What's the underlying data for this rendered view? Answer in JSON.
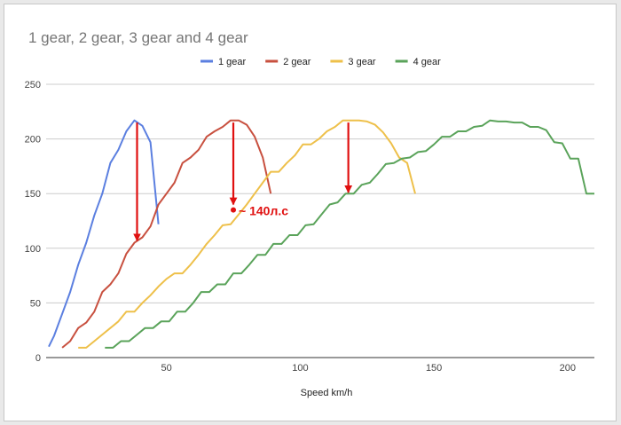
{
  "chart_data": {
    "type": "line",
    "title": "1 gear, 2 gear, 3 gear and 4 gear",
    "xlabel": "Speed km/h",
    "ylabel": "",
    "xlim": [
      5,
      210
    ],
    "ylim": [
      0,
      250
    ],
    "x_ticks": [
      50,
      100,
      150,
      200
    ],
    "y_ticks": [
      0,
      50,
      100,
      150,
      200,
      250
    ],
    "grid": "horizontal",
    "legend_position": "top",
    "series": [
      {
        "name": "1 gear",
        "color": "#5b7fe0",
        "points": [
          [
            6,
            10
          ],
          [
            8,
            20
          ],
          [
            11,
            40
          ],
          [
            14,
            60
          ],
          [
            17,
            85
          ],
          [
            20,
            105
          ],
          [
            23,
            130
          ],
          [
            26,
            150
          ],
          [
            29,
            178
          ],
          [
            32,
            190
          ],
          [
            35,
            207
          ],
          [
            38,
            217
          ],
          [
            41,
            212
          ],
          [
            44,
            197
          ],
          [
            47,
            122
          ]
        ]
      },
      {
        "name": "2 gear",
        "color": "#c8503f",
        "points": [
          [
            11,
            9
          ],
          [
            14,
            15
          ],
          [
            17,
            27
          ],
          [
            20,
            32
          ],
          [
            23,
            42
          ],
          [
            26,
            60
          ],
          [
            29,
            67
          ],
          [
            32,
            77
          ],
          [
            35,
            95
          ],
          [
            38,
            105
          ],
          [
            41,
            110
          ],
          [
            44,
            120
          ],
          [
            47,
            140
          ],
          [
            50,
            150
          ],
          [
            53,
            160
          ],
          [
            56,
            178
          ],
          [
            59,
            183
          ],
          [
            62,
            190
          ],
          [
            65,
            202
          ],
          [
            68,
            207
          ],
          [
            71,
            211
          ],
          [
            74,
            217
          ],
          [
            77,
            217
          ],
          [
            80,
            213
          ],
          [
            83,
            202
          ],
          [
            86,
            183
          ],
          [
            89,
            150
          ]
        ]
      },
      {
        "name": "3 gear",
        "color": "#eec04a",
        "points": [
          [
            17,
            9
          ],
          [
            20,
            9
          ],
          [
            23,
            15
          ],
          [
            26,
            21
          ],
          [
            29,
            27
          ],
          [
            32,
            33
          ],
          [
            35,
            42
          ],
          [
            38,
            42
          ],
          [
            41,
            50
          ],
          [
            44,
            57
          ],
          [
            47,
            65
          ],
          [
            50,
            72
          ],
          [
            53,
            77
          ],
          [
            56,
            77
          ],
          [
            59,
            85
          ],
          [
            62,
            94
          ],
          [
            65,
            104
          ],
          [
            68,
            112
          ],
          [
            71,
            121
          ],
          [
            74,
            122
          ],
          [
            77,
            131
          ],
          [
            80,
            140
          ],
          [
            83,
            150
          ],
          [
            86,
            160
          ],
          [
            89,
            170
          ],
          [
            92,
            170
          ],
          [
            95,
            178
          ],
          [
            98,
            185
          ],
          [
            101,
            195
          ],
          [
            104,
            195
          ],
          [
            107,
            200
          ],
          [
            110,
            207
          ],
          [
            113,
            211
          ],
          [
            116,
            217
          ],
          [
            119,
            217
          ],
          [
            122,
            217
          ],
          [
            125,
            216
          ],
          [
            128,
            213
          ],
          [
            131,
            206
          ],
          [
            134,
            196
          ],
          [
            137,
            183
          ],
          [
            140,
            178
          ],
          [
            143,
            150
          ]
        ]
      },
      {
        "name": "4 gear",
        "color": "#5aa35a",
        "points": [
          [
            27,
            9
          ],
          [
            30,
            9
          ],
          [
            33,
            15
          ],
          [
            36,
            15
          ],
          [
            39,
            21
          ],
          [
            42,
            27
          ],
          [
            45,
            27
          ],
          [
            48,
            33
          ],
          [
            51,
            33
          ],
          [
            54,
            42
          ],
          [
            57,
            42
          ],
          [
            60,
            50
          ],
          [
            63,
            60
          ],
          [
            66,
            60
          ],
          [
            69,
            67
          ],
          [
            72,
            67
          ],
          [
            75,
            77
          ],
          [
            78,
            77
          ],
          [
            81,
            85
          ],
          [
            84,
            94
          ],
          [
            87,
            94
          ],
          [
            90,
            104
          ],
          [
            93,
            104
          ],
          [
            96,
            112
          ],
          [
            99,
            112
          ],
          [
            102,
            121
          ],
          [
            105,
            122
          ],
          [
            108,
            131
          ],
          [
            111,
            140
          ],
          [
            114,
            142
          ],
          [
            117,
            150
          ],
          [
            120,
            150
          ],
          [
            123,
            158
          ],
          [
            126,
            160
          ],
          [
            129,
            168
          ],
          [
            132,
            177
          ],
          [
            135,
            178
          ],
          [
            138,
            182
          ],
          [
            141,
            183
          ],
          [
            144,
            188
          ],
          [
            147,
            189
          ],
          [
            150,
            195
          ],
          [
            153,
            202
          ],
          [
            156,
            202
          ],
          [
            159,
            207
          ],
          [
            162,
            207
          ],
          [
            165,
            211
          ],
          [
            168,
            212
          ],
          [
            171,
            217
          ],
          [
            174,
            216
          ],
          [
            177,
            216
          ],
          [
            180,
            215
          ],
          [
            183,
            215
          ],
          [
            186,
            211
          ],
          [
            189,
            211
          ],
          [
            192,
            208
          ],
          [
            195,
            197
          ],
          [
            198,
            196
          ],
          [
            201,
            182
          ],
          [
            204,
            182
          ],
          [
            207,
            150
          ],
          [
            210,
            150
          ]
        ]
      }
    ],
    "annotations": [
      {
        "type": "arrow",
        "x": 39,
        "from_y": 215,
        "to_y": 107
      },
      {
        "type": "arrow",
        "x": 75,
        "from_y": 215,
        "to_y": 140
      },
      {
        "type": "arrow",
        "x": 118,
        "from_y": 215,
        "to_y": 151
      },
      {
        "type": "point_label",
        "x": 75,
        "y": 135,
        "text": "~ 140л.с"
      }
    ]
  }
}
